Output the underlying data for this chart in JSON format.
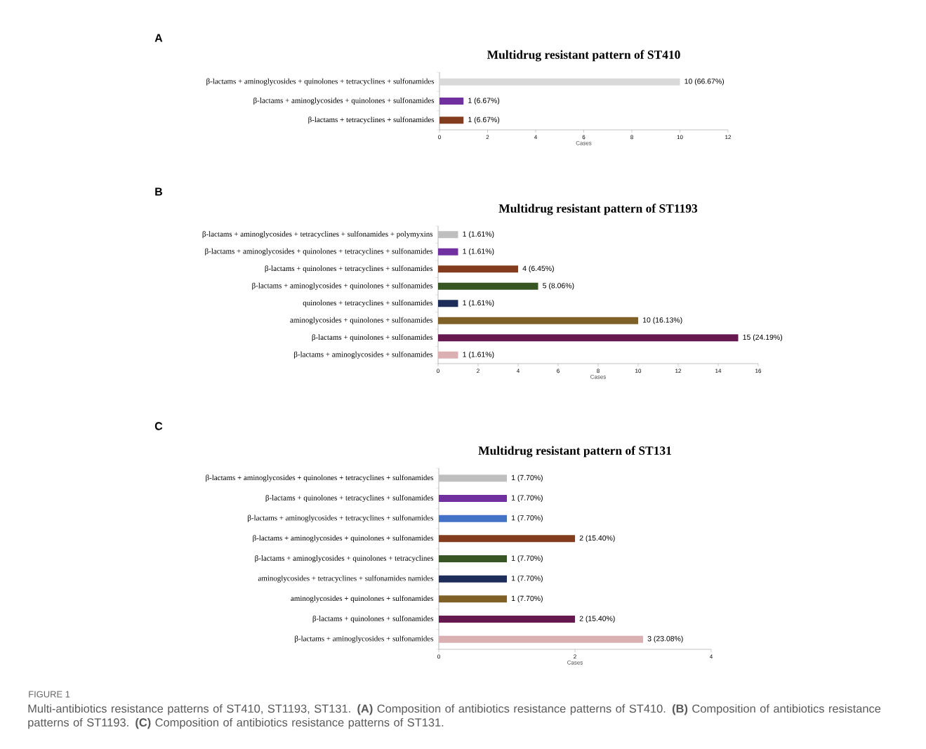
{
  "chart_data": [
    {
      "type": "bar",
      "orientation": "horizontal",
      "title": "Multidrug resistant pattern of ST410",
      "xlabel": "Cases",
      "categories": [
        "β-lactams + aminoglycosides + quinolones + tetracyclines + sulfonamides",
        "β-lactams + aminoglycosides + quinolones + sulfonamides",
        "β-lactams + tetracyclines + sulfonamides"
      ],
      "values": [
        10,
        1,
        1
      ],
      "colors": [
        "#d9d9d9",
        "#7030a0",
        "#843c1e"
      ],
      "value_labels": [
        "10 (66.67%)",
        "1 (6.67%)",
        "1 (6.67%)"
      ],
      "xlim": [
        0,
        12
      ],
      "xticks": [
        0,
        2,
        4,
        6,
        8,
        10,
        12
      ],
      "annotations": [
        "A"
      ]
    },
    {
      "type": "bar",
      "orientation": "horizontal",
      "title": "Multidrug resistant pattern of ST1193",
      "xlabel": "Cases",
      "categories": [
        "β-lactams + aminoglycosides + tetracyclines + sulfonamides + polymyxins",
        "β-lactams + aminoglycosides + quinolones + tetracyclines + sulfonamides",
        "β-lactams + quinolones + tetracyclines + sulfonamides",
        "β-lactams + aminoglycosides + quinolones + sulfonamides",
        "quinolones + tetracyclines + sulfonamides",
        "aminoglycosides + quinolones + sulfonamides",
        "β-lactams + quinolones + sulfonamides",
        "β-lactams + aminoglycosides + sulfonamides"
      ],
      "values": [
        1,
        1,
        4,
        5,
        1,
        10,
        15,
        1
      ],
      "colors": [
        "#bfbfbf",
        "#7030a0",
        "#843c1e",
        "#375623",
        "#1f2d5a",
        "#7f6127",
        "#65194f",
        "#dbb0b3"
      ],
      "value_labels": [
        "1 (1.61%)",
        "1 (1.61%)",
        "4 (6.45%)",
        "5 (8.06%)",
        "1 (1.61%)",
        "10 (16.13%)",
        "15 (24.19%)",
        "1 (1.61%)"
      ],
      "xlim": [
        0,
        16
      ],
      "xticks": [
        0,
        2,
        4,
        6,
        8,
        10,
        12,
        14,
        16
      ],
      "annotations": [
        "B"
      ]
    },
    {
      "type": "bar",
      "orientation": "horizontal",
      "title": "Multidrug resistant pattern of ST131",
      "xlabel": "Cases",
      "categories": [
        "β-lactams + aminoglycosides + quinolones + tetracyclines + sulfonamides",
        "β-lactams + quinolones + tetracyclines + sulfonamides",
        "β-lactams + aminoglycosides + tetracyclines + sulfonamides",
        "β-lactams + aminoglycosides + quinolones + sulfonamides",
        "β-lactams + aminoglycosides + quinolones + tetracyclines",
        "aminoglycosides + tetracyclines + sulfonamides namides",
        "aminoglycosides + quinolones + sulfonamides",
        "β-lactams + quinolones + sulfonamides",
        "β-lactams + aminoglycosides + sulfonamides"
      ],
      "values": [
        1,
        1,
        1,
        2,
        1,
        1,
        1,
        2,
        3
      ],
      "colors": [
        "#bfbfbf",
        "#7030a0",
        "#4472c4",
        "#843c1e",
        "#375623",
        "#1f2d5a",
        "#7f6127",
        "#65194f",
        "#dbb0b3"
      ],
      "value_labels": [
        "1 (7.70%)",
        "1 (7.70%)",
        "1 (7.70%)",
        "2 (15.40%)",
        "1 (7.70%)",
        "1 (7.70%)",
        "1 (7.70%)",
        "2 (15.40%)",
        "3 (23.08%)"
      ],
      "xlim": [
        0,
        4
      ],
      "xticks": [
        0,
        2,
        4
      ],
      "annotations": [
        "C",
        "FIGURE 1",
        "Multi-antibiotics resistance patterns of ST410, ST1193, ST131. **(A)** Composition of antibiotics resistance patterns of ST410. **(B)** Composition of antibiotics resistance patterns of ST1193. **(C)** Composition of antibiotics resistance patterns of ST131."
      ]
    }
  ]
}
